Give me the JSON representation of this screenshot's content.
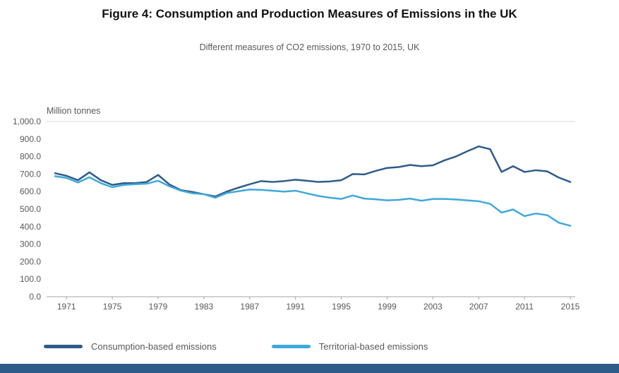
{
  "page": {
    "title": "Figure 4: Consumption and Production Measures of Emissions in the UK"
  },
  "footer": {
    "bar_color": "#2e5c8a"
  },
  "chart_data": {
    "type": "line",
    "title": "Different measures of CO2 emissions, 1970 to 2015, UK",
    "unit_label": "Million tonnes",
    "xlabel": "",
    "ylabel": "Million tonnes",
    "ylim": [
      0,
      1000
    ],
    "y_tick_step": 100,
    "grid": false,
    "legend_position": "bottom",
    "x": [
      1970,
      1971,
      1972,
      1973,
      1974,
      1975,
      1976,
      1977,
      1978,
      1979,
      1980,
      1981,
      1982,
      1983,
      1984,
      1985,
      1986,
      1987,
      1988,
      1989,
      1990,
      1991,
      1992,
      1993,
      1994,
      1995,
      1996,
      1997,
      1998,
      1999,
      2000,
      2001,
      2002,
      2003,
      2004,
      2005,
      2006,
      2007,
      2008,
      2009,
      2010,
      2011,
      2012,
      2013,
      2014,
      2015
    ],
    "x_ticks": [
      1971,
      1975,
      1979,
      1983,
      1987,
      1991,
      1995,
      1999,
      2003,
      2007,
      2011,
      2015
    ],
    "series": [
      {
        "name": "Consumption-based emissions",
        "color": "#2e5c8a",
        "values": [
          705,
          690,
          665,
          710,
          665,
          638,
          648,
          648,
          655,
          695,
          640,
          608,
          598,
          585,
          572,
          600,
          622,
          642,
          660,
          655,
          660,
          668,
          662,
          655,
          658,
          665,
          700,
          698,
          718,
          735,
          740,
          752,
          745,
          750,
          778,
          800,
          830,
          858,
          842,
          712,
          745,
          712,
          722,
          715,
          680,
          655
        ]
      },
      {
        "name": "Territorial-based emissions",
        "color": "#3fa9dc",
        "values": [
          688,
          678,
          652,
          682,
          648,
          625,
          638,
          642,
          645,
          662,
          630,
          605,
          590,
          585,
          565,
          592,
          602,
          612,
          610,
          605,
          600,
          605,
          590,
          575,
          565,
          558,
          578,
          560,
          556,
          550,
          553,
          560,
          548,
          558,
          558,
          555,
          550,
          545,
          530,
          480,
          498,
          460,
          475,
          465,
          422,
          405
        ]
      }
    ],
    "axis_color": "#a6a6a6",
    "gridline_color": "#d9d9d9",
    "tick_label_color": "#595959"
  }
}
